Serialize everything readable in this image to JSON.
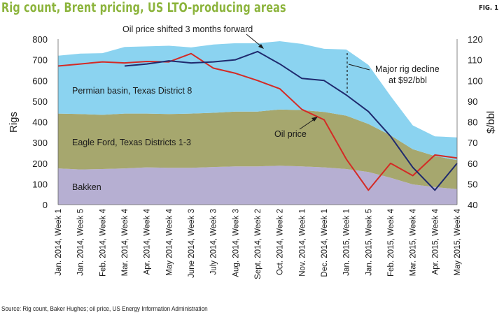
{
  "title": "Rig count, Brent pricing, US LTO-producing areas",
  "fig_label": "FIG. 1",
  "source": "Source: Rig count, Baker Hughes; oil price, US Energy Information Administration",
  "colors": {
    "permian": "#8bd3f0",
    "eagle_ford": "#a6a76e",
    "bakken": "#b6afd2",
    "oil_price_line": "#d42a25",
    "shifted_line": "#1f2a6e",
    "title": "#8cb43c"
  },
  "chart_data": {
    "type": "area",
    "ylabel": "Rigs",
    "y2label": "$/bbl",
    "ylim": [
      0,
      800
    ],
    "y2lim": [
      40,
      120
    ],
    "y_ticks": [
      "0",
      "100",
      "200",
      "300",
      "400",
      "500",
      "600",
      "700",
      "800"
    ],
    "y2_ticks": [
      "40",
      "50",
      "60",
      "70",
      "80",
      "90",
      "100",
      "110",
      "120"
    ],
    "categories": [
      "Jan. 2014, Week 1",
      "Jan. 2014, Week 5",
      "Feb. 2014, Week 4",
      "Mar. 2014, Week 4",
      "Apr. 2014, Week 4",
      "May 2014, Week 4",
      "June 2014, Week 3",
      "July 2014, Week 3",
      "Aug. 2014, Week 3",
      "Sept. 2014, Week 2",
      "Oct. 2014, Week 2",
      "Nov. 2014, Week 1",
      "Dec. 2014, Week 1",
      "Jan. 2015, Week 1",
      "Jan. 2015, Week 5",
      "Feb. 2015, Week 4",
      "Mar. 2015, Week 4",
      "Apr. 2015, Week 4",
      "May 2015, Week 4"
    ],
    "region_labels": [
      {
        "name": "permian",
        "text": "Permian basin, Texas District 8"
      },
      {
        "name": "eagle-ford",
        "text": "Eagle Ford, Texas Districts 1-3"
      },
      {
        "name": "bakken",
        "text": "Bakken"
      }
    ],
    "annotations": {
      "shifted": "Oil price shifted 3 months forward",
      "oil_price": "Oil price",
      "rig_decline_line1": "Major rig decline",
      "rig_decline_line2": "at $92/bbl"
    },
    "stacked_series": [
      {
        "name": "Bakken",
        "values": [
          175,
          170,
          172,
          175,
          180,
          178,
          178,
          182,
          185,
          185,
          188,
          185,
          180,
          172,
          158,
          130,
          98,
          85,
          75
        ]
      },
      {
        "name": "Eagle Ford, Texas Districts 1-3",
        "values": [
          265,
          268,
          262,
          265,
          260,
          260,
          262,
          262,
          265,
          265,
          272,
          272,
          268,
          258,
          232,
          205,
          170,
          150,
          140
        ]
      },
      {
        "name": "Permian basin, Texas District 8",
        "values": [
          280,
          292,
          298,
          322,
          325,
          330,
          320,
          330,
          330,
          330,
          330,
          320,
          305,
          320,
          285,
          190,
          115,
          95,
          110
        ]
      }
    ],
    "lines": [
      {
        "name": "Oil price",
        "axis": "right",
        "values": [
          107,
          108,
          109,
          108.5,
          109.2,
          109,
          113,
          106,
          103.5,
          100,
          96,
          86,
          81,
          62,
          47,
          60,
          54,
          64,
          62.5
        ]
      },
      {
        "name": "Oil price shifted 3 months forward",
        "axis": "right",
        "values": [
          null,
          null,
          null,
          107,
          108,
          109.5,
          108.5,
          109,
          110,
          114,
          108,
          101,
          100,
          93,
          85,
          73,
          58,
          47,
          60
        ]
      }
    ]
  }
}
